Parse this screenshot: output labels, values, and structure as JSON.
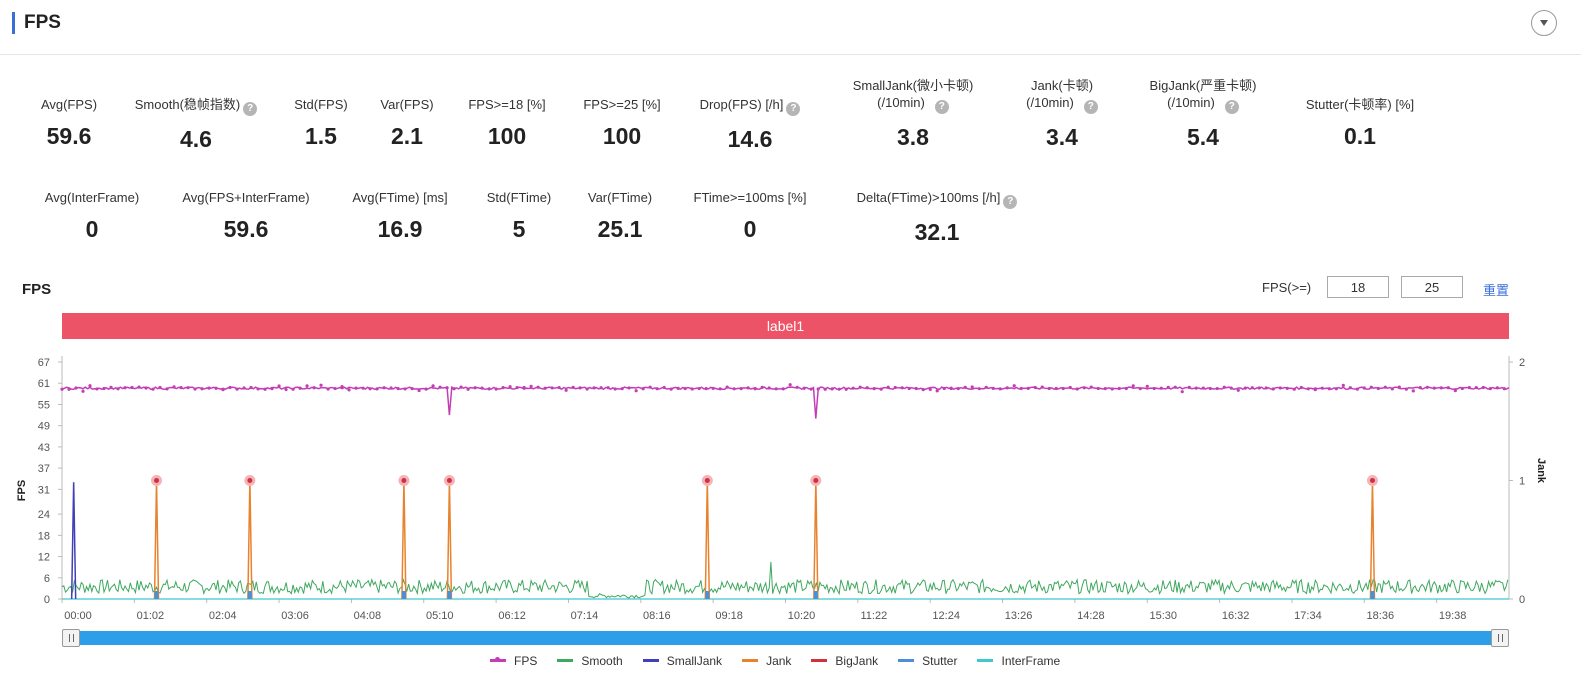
{
  "header": {
    "title": "FPS"
  },
  "stats_row1": [
    {
      "label": "Avg(FPS)",
      "value": "59.6",
      "help": false
    },
    {
      "label": "Smooth(稳帧指数)",
      "value": "4.6",
      "help": true
    },
    {
      "label": "Std(FPS)",
      "value": "1.5",
      "help": false
    },
    {
      "label": "Var(FPS)",
      "value": "2.1",
      "help": false
    },
    {
      "label": "FPS>=18 [%]",
      "value": "100",
      "help": false
    },
    {
      "label": "FPS>=25 [%]",
      "value": "100",
      "help": false
    },
    {
      "label": "Drop(FPS) [/h]",
      "value": "14.6",
      "help": true
    },
    {
      "label": "SmallJank(微小卡顿)",
      "label2": "(/10min)",
      "value": "3.8",
      "help": true
    },
    {
      "label": "Jank(卡顿)",
      "label2": "(/10min)",
      "value": "3.4",
      "help": true
    },
    {
      "label": "BigJank(严重卡顿)",
      "label2": "(/10min)",
      "value": "5.4",
      "help": true
    },
    {
      "label": "Stutter(卡顿率) [%]",
      "value": "0.1",
      "help": false
    }
  ],
  "stats_row2": [
    {
      "label": "Avg(InterFrame)",
      "value": "0",
      "help": false
    },
    {
      "label": "Avg(FPS+InterFrame)",
      "value": "59.6",
      "help": false
    },
    {
      "label": "Avg(FTime) [ms]",
      "value": "16.9",
      "help": false
    },
    {
      "label": "Std(FTime)",
      "value": "5",
      "help": false
    },
    {
      "label": "Var(FTime)",
      "value": "25.1",
      "help": false
    },
    {
      "label": "FTime>=100ms [%]",
      "value": "0",
      "help": false
    },
    {
      "label": "Delta(FTime)>100ms [/h]",
      "value": "32.1",
      "help": true
    }
  ],
  "chart_section": {
    "title": "FPS",
    "threshold_label": "FPS(>=)",
    "threshold1": "18",
    "threshold2": "25",
    "reset_label": "重置",
    "label_bar": "label1"
  },
  "chart_data": {
    "type": "line",
    "y_left": {
      "label": "FPS",
      "ticks": [
        0,
        6,
        12,
        18,
        24,
        31,
        37,
        43,
        49,
        55,
        61,
        67
      ],
      "range": [
        0,
        67
      ]
    },
    "y_right": {
      "label": "Jank",
      "ticks": [
        0,
        1,
        2
      ],
      "range": [
        0,
        2
      ]
    },
    "x_ticks": [
      "00:00",
      "01:02",
      "02:04",
      "03:06",
      "04:08",
      "05:10",
      "06:12",
      "07:14",
      "08:16",
      "09:18",
      "10:20",
      "11:22",
      "12:24",
      "13:26",
      "14:28",
      "15:30",
      "16:32",
      "17:34",
      "18:36",
      "19:38"
    ],
    "x_range_seconds": [
      0,
      1240
    ],
    "series": [
      {
        "name": "FPS",
        "color": "#c33eb6",
        "baseline": 59.6,
        "dips": [
          {
            "t": 81,
            "v": 53
          },
          {
            "t": 161,
            "v": 53
          },
          {
            "t": 293,
            "v": 54
          },
          {
            "t": 332,
            "v": 52
          },
          {
            "t": 553,
            "v": 51
          },
          {
            "t": 646,
            "v": 51
          },
          {
            "t": 1123,
            "v": 54
          }
        ]
      },
      {
        "name": "Smooth",
        "color": "#3fa85f",
        "range": [
          0,
          6
        ],
        "spike": {
          "t": 607,
          "v": 10.5
        }
      },
      {
        "name": "SmallJank",
        "color": "#4040b8",
        "spike": {
          "t": 10,
          "v": 33
        }
      },
      {
        "name": "Jank",
        "color": "#e8822c",
        "events_t": [
          81,
          161,
          293,
          332,
          553,
          646,
          1123
        ],
        "value": 1
      },
      {
        "name": "BigJank",
        "color": "#d2303c"
      },
      {
        "name": "Stutter",
        "color": "#4a90d9"
      },
      {
        "name": "InterFrame",
        "color": "#3fc8cf",
        "value": 0
      }
    ]
  },
  "slider": {
    "start": 0,
    "end": 1
  }
}
